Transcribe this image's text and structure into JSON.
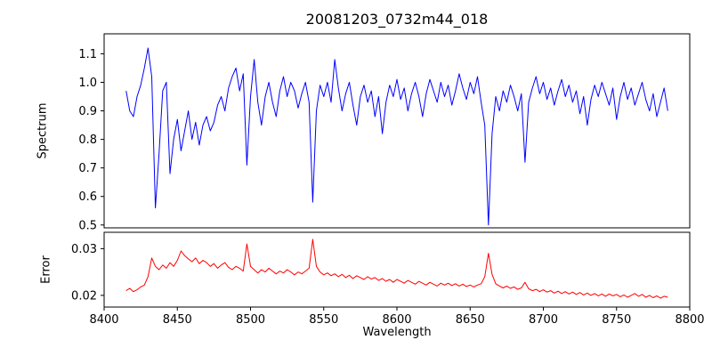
{
  "figure": {
    "title": "20081203_0732m44_018",
    "background": "#ffffff"
  },
  "x_axis": {
    "label": "Wavelength",
    "xlim": [
      8400,
      8800
    ],
    "ticks": [
      8400,
      8450,
      8500,
      8550,
      8600,
      8650,
      8700,
      8750,
      8800
    ],
    "tick_labels": [
      "8400",
      "8450",
      "8500",
      "8550",
      "8600",
      "8650",
      "8700",
      "8750",
      "8800"
    ]
  },
  "chart_data": [
    {
      "type": "line",
      "name": "spectrum",
      "ylabel": "Spectrum",
      "color": "#0000ff",
      "ylim": [
        0.49,
        1.17
      ],
      "yticks": [
        0.5,
        0.6,
        0.7,
        0.8,
        0.9,
        1.0,
        1.1
      ],
      "ytick_labels": [
        "0.5",
        "0.6",
        "0.7",
        "0.8",
        "0.9",
        "1.0",
        "1.1"
      ],
      "grid": false,
      "legend": "none",
      "x_start": 8415,
      "x_step": 2.5,
      "y": [
        0.97,
        0.9,
        0.88,
        0.95,
        0.99,
        1.05,
        1.12,
        1.02,
        0.56,
        0.75,
        0.97,
        1.0,
        0.68,
        0.8,
        0.87,
        0.76,
        0.83,
        0.9,
        0.8,
        0.86,
        0.78,
        0.85,
        0.88,
        0.83,
        0.86,
        0.92,
        0.95,
        0.9,
        0.98,
        1.02,
        1.05,
        0.97,
        1.03,
        0.71,
        0.95,
        1.08,
        0.93,
        0.85,
        0.95,
        1.0,
        0.93,
        0.88,
        0.97,
        1.02,
        0.95,
        1.0,
        0.97,
        0.91,
        0.96,
        1.0,
        0.93,
        0.58,
        0.9,
        0.99,
        0.95,
        1.0,
        0.93,
        1.08,
        0.98,
        0.9,
        0.96,
        1.0,
        0.92,
        0.85,
        0.95,
        0.99,
        0.93,
        0.97,
        0.88,
        0.95,
        0.82,
        0.93,
        0.99,
        0.95,
        1.01,
        0.94,
        0.98,
        0.9,
        0.96,
        1.0,
        0.95,
        0.88,
        0.96,
        1.01,
        0.97,
        0.93,
        1.0,
        0.95,
        0.99,
        0.92,
        0.97,
        1.03,
        0.98,
        0.94,
        1.0,
        0.96,
        1.02,
        0.93,
        0.85,
        0.5,
        0.82,
        0.95,
        0.9,
        0.97,
        0.93,
        0.99,
        0.95,
        0.9,
        0.96,
        0.72,
        0.93,
        0.98,
        1.02,
        0.96,
        1.0,
        0.94,
        0.98,
        0.92,
        0.97,
        1.01,
        0.95,
        0.99,
        0.93,
        0.97,
        0.89,
        0.95,
        0.85,
        0.94,
        0.99,
        0.95,
        1.0,
        0.96,
        0.92,
        0.98,
        0.87,
        0.95,
        1.0,
        0.94,
        0.98,
        0.92,
        0.96,
        1.0,
        0.94,
        0.9,
        0.96,
        0.88,
        0.93,
        0.98,
        0.9
      ]
    },
    {
      "type": "line",
      "name": "error",
      "ylabel": "Error",
      "color": "#ff0000",
      "ylim": [
        0.0175,
        0.0335
      ],
      "yticks": [
        0.02,
        0.03
      ],
      "ytick_labels": [
        "0.02",
        "0.03"
      ],
      "grid": false,
      "legend": "none",
      "x_start": 8415,
      "x_step": 2.5,
      "y": [
        0.021,
        0.0215,
        0.0208,
        0.0212,
        0.0218,
        0.0222,
        0.024,
        0.028,
        0.0262,
        0.0255,
        0.0265,
        0.0258,
        0.027,
        0.0262,
        0.0275,
        0.0295,
        0.0285,
        0.0278,
        0.0272,
        0.028,
        0.0268,
        0.0275,
        0.027,
        0.0262,
        0.0268,
        0.0258,
        0.0265,
        0.027,
        0.026,
        0.0255,
        0.0262,
        0.0258,
        0.0252,
        0.031,
        0.0262,
        0.0255,
        0.0248,
        0.0255,
        0.025,
        0.0258,
        0.0252,
        0.0246,
        0.0252,
        0.0248,
        0.0255,
        0.025,
        0.0244,
        0.025,
        0.0246,
        0.0252,
        0.0258,
        0.032,
        0.0262,
        0.025,
        0.0244,
        0.0248,
        0.0242,
        0.0246,
        0.024,
        0.0245,
        0.0238,
        0.0243,
        0.0236,
        0.0242,
        0.0238,
        0.0234,
        0.024,
        0.0235,
        0.0238,
        0.0232,
        0.0236,
        0.023,
        0.0234,
        0.0228,
        0.0234,
        0.023,
        0.0226,
        0.0232,
        0.0228,
        0.0224,
        0.023,
        0.0226,
        0.0222,
        0.0228,
        0.0224,
        0.022,
        0.0226,
        0.0222,
        0.0226,
        0.0221,
        0.0225,
        0.022,
        0.0224,
        0.0219,
        0.0222,
        0.0218,
        0.0222,
        0.0225,
        0.024,
        0.029,
        0.0245,
        0.0225,
        0.022,
        0.0216,
        0.022,
        0.0215,
        0.0218,
        0.0213,
        0.0216,
        0.0228,
        0.0214,
        0.021,
        0.0213,
        0.0208,
        0.0212,
        0.0207,
        0.021,
        0.0205,
        0.0209,
        0.0204,
        0.0208,
        0.0203,
        0.0207,
        0.0202,
        0.0206,
        0.0201,
        0.0205,
        0.02,
        0.0204,
        0.0199,
        0.0203,
        0.0198,
        0.0203,
        0.0199,
        0.0202,
        0.0197,
        0.0201,
        0.0196,
        0.02,
        0.0204,
        0.0198,
        0.0202,
        0.0196,
        0.02,
        0.0195,
        0.0199,
        0.0194,
        0.0198,
        0.0196
      ]
    }
  ]
}
